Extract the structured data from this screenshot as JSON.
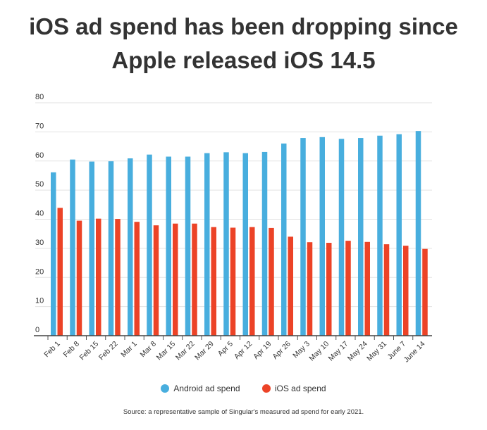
{
  "chart_data": {
    "type": "bar",
    "title": "iOS ad spend has been dropping since Apple released iOS 14.5",
    "title_lines": [
      "iOS ad spend has been dropping since",
      "Apple released iOS 14.5"
    ],
    "categories": [
      "Feb 1",
      "Feb 8",
      "Feb 15",
      "Feb 22",
      "Mar 1",
      "Mar 8",
      "Mar 15",
      "Mar 22",
      "Mar 29",
      "Apr 5",
      "Apr 12",
      "Apr 19",
      "Apr 26",
      "May 3",
      "May 10",
      "May 17",
      "May 24",
      "May 31",
      "June 7",
      "June 14"
    ],
    "series": [
      {
        "name": "Android ad spend",
        "color": "#48aede",
        "values": [
          56.1,
          60.5,
          59.8,
          59.9,
          60.9,
          62.2,
          61.5,
          61.5,
          62.7,
          63.0,
          62.7,
          63.1,
          66.0,
          67.9,
          68.2,
          67.6,
          67.9,
          68.7,
          69.2,
          70.3
        ]
      },
      {
        "name": "iOS ad spend",
        "color": "#ec4327",
        "values": [
          43.9,
          39.5,
          40.2,
          40.1,
          39.1,
          37.9,
          38.5,
          38.5,
          37.3,
          37.1,
          37.3,
          37.0,
          34.0,
          32.1,
          31.9,
          32.6,
          32.2,
          31.4,
          30.9,
          29.8
        ]
      }
    ],
    "yticks": [
      0,
      10,
      20,
      30,
      40,
      50,
      60,
      70,
      80
    ],
    "ylim": [
      0,
      80
    ],
    "grid": true,
    "legend": "bottom",
    "source": "Source: a representative sample of Singular's measured ad spend for early 2021."
  }
}
